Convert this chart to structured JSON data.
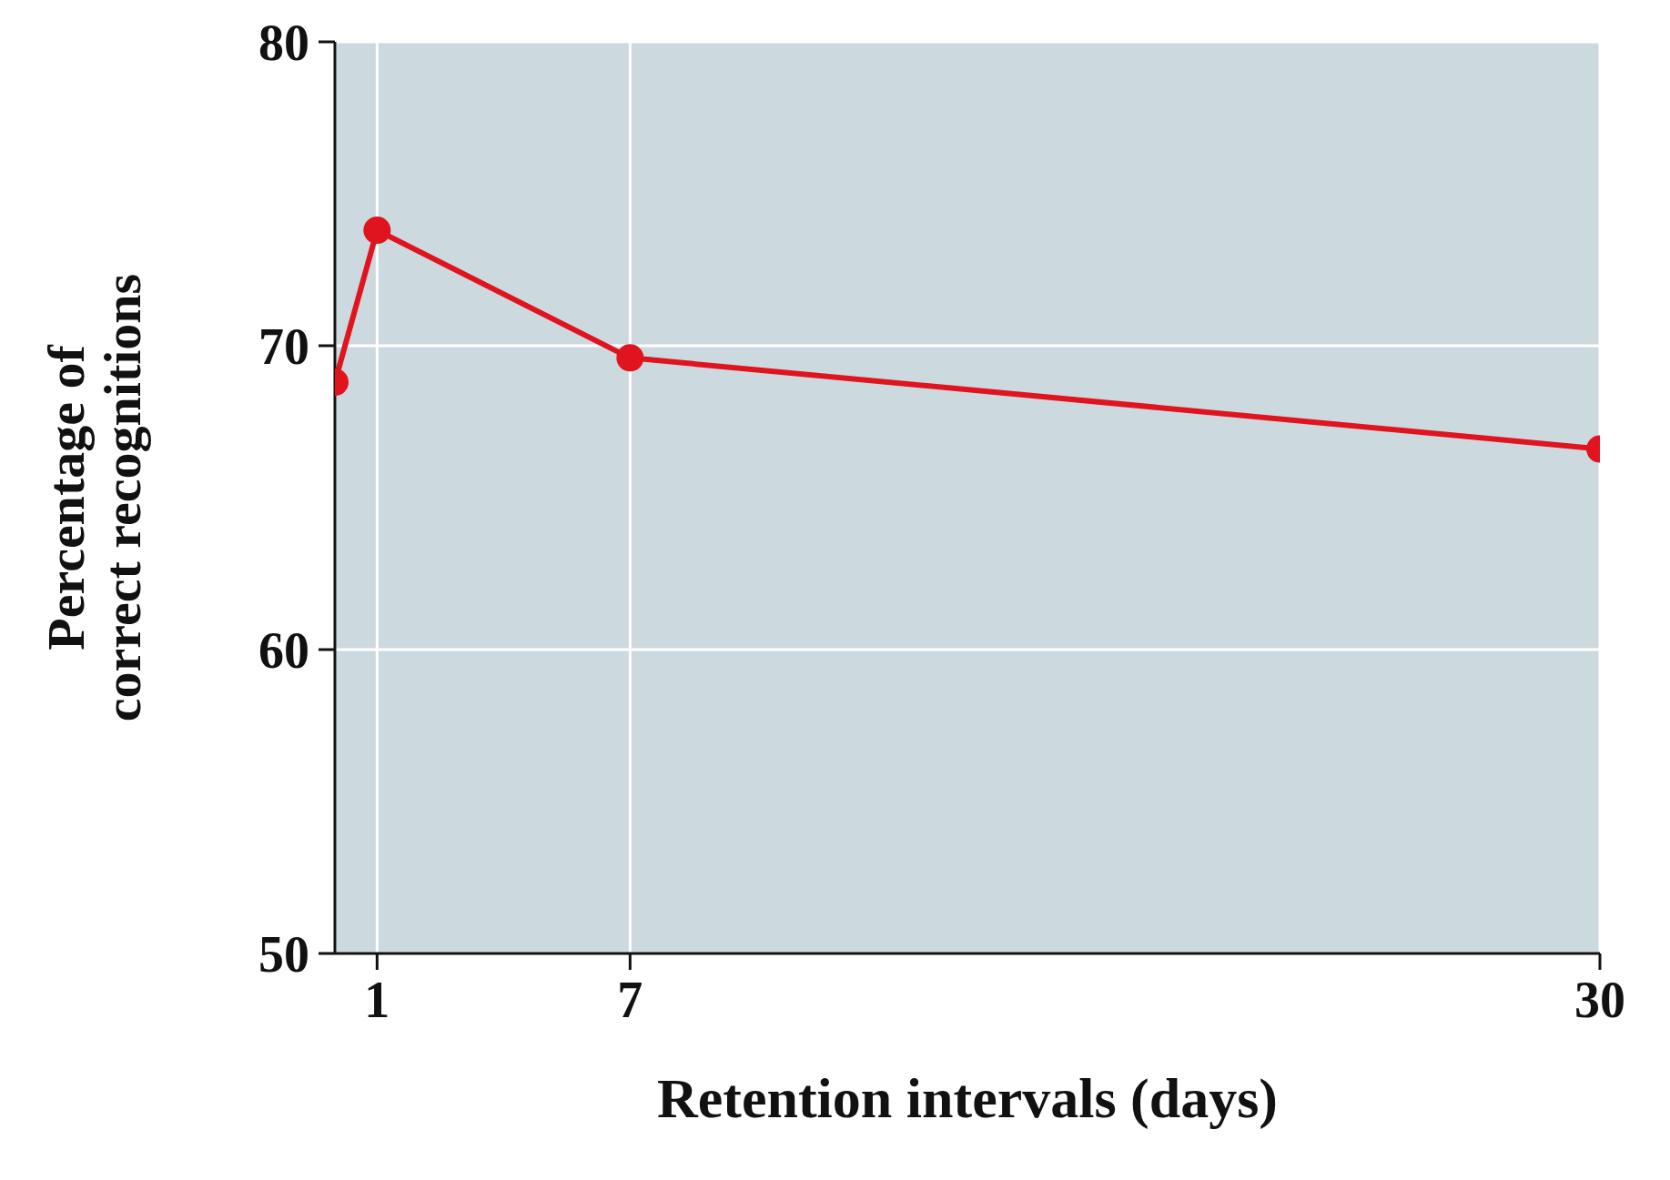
{
  "chart_data": {
    "type": "line",
    "xlabel": "Retention intervals (days)",
    "ylabel": "Percentage of\ncorrect recognitions",
    "x": [
      0,
      1,
      7,
      30
    ],
    "series": [
      {
        "color": "#e0141e",
        "values": [
          68.8,
          73.8,
          69.6,
          66.6
        ]
      }
    ],
    "xlim": [
      0,
      30
    ],
    "xticks": [
      1,
      7,
      30
    ],
    "ylim": [
      50,
      80
    ],
    "yticks": [
      50,
      60,
      70,
      80
    ],
    "grid": true,
    "marker": "circle",
    "line_style": "solid"
  }
}
